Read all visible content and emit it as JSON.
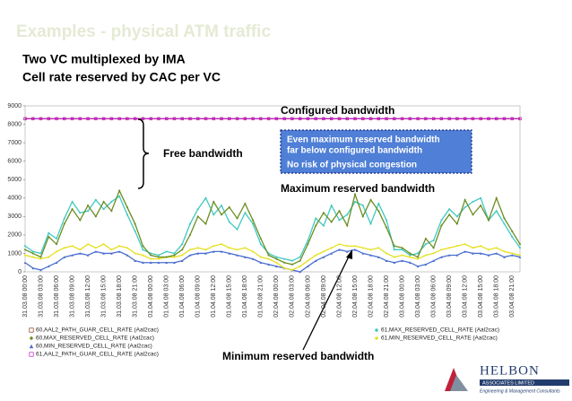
{
  "slide": {
    "title": "Examples - physical ATM traffic",
    "lines": [
      "Two VC multiplexed by IMA",
      "Cell rate reserved by CAC per VC"
    ]
  },
  "logo": {
    "name": "HELBON",
    "sub": "ASSOCIATES LIMITED",
    "tagline": "Engineering & Management Consultants"
  },
  "chart_data": {
    "type": "line",
    "categories": [
      "31.03.08 00:00",
      null,
      "31.03.08 03:00",
      null,
      "31.03.08 06:00",
      null,
      "31.03.08 09:00",
      null,
      "31.03.08 12:00",
      null,
      "31.03.08 15:00",
      null,
      "31.03.08 18:00",
      null,
      "31.03.08 21:00",
      null,
      "01.04.08 00:00",
      null,
      "01.04.08 03:00",
      null,
      "01.04.08 06:00",
      null,
      "01.04.08 09:00",
      null,
      "01.04.08 12:00",
      null,
      "01.04.08 15:00",
      null,
      "01.04.08 18:00",
      null,
      "01.04.08 21:00",
      null,
      "02.04.08 00:00",
      null,
      "02.04.08 03:00",
      null,
      "02.04.08 06:00",
      null,
      "02.04.08 09:00",
      null,
      "02.04.08 12:00",
      null,
      "02.04.08 15:00",
      null,
      "02.04.08 18:00",
      null,
      "02.04.08 21:00",
      null,
      "03.04.08 00:00",
      null,
      "03.04.08 03:00",
      null,
      "03.04.08 06:00",
      null,
      "03.04.08 09:00",
      null,
      "03.04.08 12:00",
      null,
      "03.04.08 15:00",
      null,
      "03.04.08 18:00",
      null,
      "03.04.08 21:00",
      null
    ],
    "ylim": [
      0,
      9000
    ],
    "yticks": [
      0,
      1000,
      2000,
      3000,
      4000,
      5000,
      6000,
      7000,
      8000,
      9000
    ],
    "grid": false,
    "series": [
      {
        "name": "60,AAL2_PATH_GUAR_CELL_RATE (Aal2cac)",
        "color": "#8b3a1a",
        "marker": "square",
        "values": [
          8300,
          8300,
          8300,
          8300,
          8300,
          8300,
          8300,
          8300,
          8300,
          8300,
          8300,
          8300,
          8300,
          8300,
          8300,
          8300,
          8300,
          8300,
          8300,
          8300,
          8300,
          8300,
          8300,
          8300,
          8300,
          8300,
          8300,
          8300,
          8300,
          8300,
          8300,
          8300,
          8300,
          8300,
          8300,
          8300,
          8300,
          8300,
          8300,
          8300,
          8300,
          8300,
          8300,
          8300,
          8300,
          8300,
          8300,
          8300,
          8300,
          8300,
          8300,
          8300,
          8300,
          8300,
          8300,
          8300,
          8300,
          8300,
          8300,
          8300,
          8300,
          8300,
          8300,
          8300
        ]
      },
      {
        "name": "60,MAX_RESERVED_CELL_RATE (Aal2cac)",
        "color": "#6b8e23",
        "marker": "diamond",
        "values": [
          1200,
          1000,
          800,
          1900,
          1500,
          2600,
          3400,
          2800,
          3600,
          3000,
          3800,
          3300,
          4400,
          3500,
          2600,
          1400,
          900,
          800,
          800,
          900,
          1200,
          2000,
          3000,
          2600,
          3800,
          3100,
          3500,
          2900,
          3700,
          2800,
          1800,
          900,
          700,
          500,
          400,
          600,
          1500,
          2500,
          3200,
          2700,
          3300,
          2500,
          4200,
          3000,
          3900,
          3300,
          2400,
          1400,
          1300,
          1000,
          800,
          1800,
          1300,
          2500,
          3100,
          2600,
          3900,
          3100,
          3600,
          2800,
          4000,
          2900,
          2200,
          1500
        ]
      },
      {
        "name": "60,MIN_RESERVED_CELL_RATE (Aal2cac)",
        "color": "#4a6fd0",
        "marker": "triangle",
        "values": [
          500,
          200,
          100,
          300,
          500,
          800,
          900,
          1000,
          900,
          1100,
          1000,
          1000,
          1100,
          900,
          600,
          500,
          500,
          500,
          500,
          500,
          600,
          900,
          1000,
          1000,
          1100,
          1100,
          1000,
          900,
          800,
          700,
          500,
          400,
          300,
          200,
          100,
          0,
          300,
          600,
          800,
          1000,
          1200,
          1100,
          1200,
          1000,
          900,
          800,
          600,
          500,
          600,
          500,
          300,
          400,
          600,
          800,
          900,
          900,
          1100,
          1000,
          1000,
          900,
          1000,
          800,
          900,
          800
        ]
      },
      {
        "name": "61,AAL2_PATH_GUAR_CELL_RATE (Aal2cac)",
        "color": "#c020c0",
        "marker": "square",
        "values": [
          8300,
          8300,
          8300,
          8300,
          8300,
          8300,
          8300,
          8300,
          8300,
          8300,
          8300,
          8300,
          8300,
          8300,
          8300,
          8300,
          8300,
          8300,
          8300,
          8300,
          8300,
          8300,
          8300,
          8300,
          8300,
          8300,
          8300,
          8300,
          8300,
          8300,
          8300,
          8300,
          8300,
          8300,
          8300,
          8300,
          8300,
          8300,
          8300,
          8300,
          8300,
          8300,
          8300,
          8300,
          8300,
          8300,
          8300,
          8300,
          8300,
          8300,
          8300,
          8300,
          8300,
          8300,
          8300,
          8300,
          8300,
          8300,
          8300,
          8300,
          8300,
          8300,
          8300,
          8300
        ]
      },
      {
        "name": "61,MAX_RESERVED_CELL_RATE (Aal2cac)",
        "color": "#40c8c0",
        "marker": "circle",
        "values": [
          1400,
          1100,
          1000,
          2100,
          1800,
          2900,
          3800,
          3200,
          3300,
          3900,
          3400,
          3800,
          4100,
          3100,
          2200,
          1200,
          1000,
          900,
          1100,
          1000,
          1500,
          2600,
          3400,
          4000,
          3100,
          3600,
          2700,
          2300,
          3200,
          2600,
          1500,
          1000,
          800,
          700,
          600,
          800,
          1700,
          2900,
          2500,
          3600,
          2800,
          3100,
          3800,
          3600,
          2600,
          3700,
          2800,
          1200,
          1200,
          900,
          1000,
          1500,
          1700,
          2800,
          3400,
          3000,
          3500,
          3800,
          4000,
          2800,
          3300,
          2600,
          1900,
          1300
        ]
      },
      {
        "name": "61,MIN_RESERVED_CELL_RATE (Aal2cac)",
        "color": "#e6e020",
        "marker": "circle",
        "values": [
          900,
          800,
          700,
          800,
          1100,
          1300,
          1400,
          1200,
          1500,
          1300,
          1500,
          1200,
          1400,
          1300,
          1000,
          900,
          700,
          700,
          800,
          800,
          900,
          1200,
          1300,
          1200,
          1400,
          1500,
          1300,
          1200,
          1300,
          1100,
          800,
          700,
          500,
          200,
          100,
          300,
          600,
          900,
          1100,
          1300,
          1500,
          1400,
          1400,
          1300,
          1200,
          1300,
          1000,
          800,
          900,
          800,
          700,
          900,
          1000,
          1200,
          1300,
          1400,
          1500,
          1300,
          1400,
          1200,
          1300,
          1100,
          1000,
          900
        ]
      }
    ],
    "annotations": [
      "Configured bandwidth",
      "Free bandwidth",
      "Maximum reserved bandwidth",
      "Minimum reserved bandwidth"
    ],
    "callout": [
      "Even maximum reserved bandwidth",
      "far below configured bandwidth",
      "No risk of physical congestion"
    ]
  }
}
